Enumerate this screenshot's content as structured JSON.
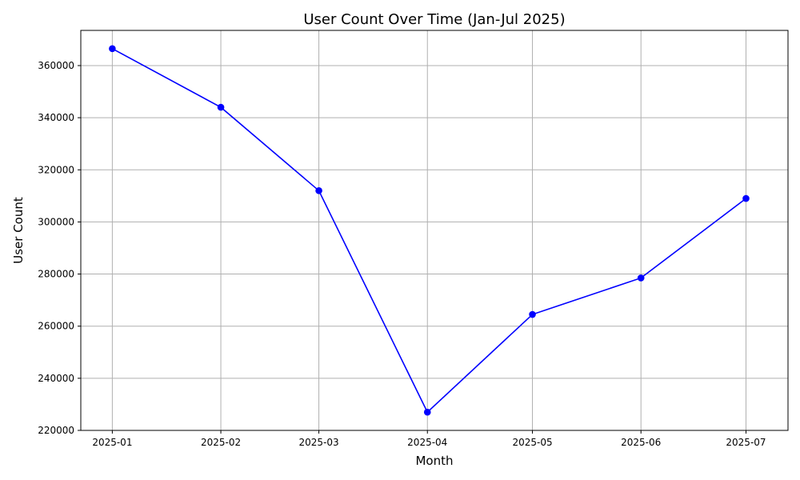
{
  "chart_data": {
    "type": "line",
    "title": "User Count Over Time (Jan-Jul 2025)",
    "xlabel": "Month",
    "ylabel": "User Count",
    "x": [
      "2025-01",
      "2025-02",
      "2025-03",
      "2025-04",
      "2025-05",
      "2025-06",
      "2025-07"
    ],
    "series": [
      {
        "values": [
          366500,
          344000,
          312000,
          227000,
          264500,
          278500,
          309000
        ],
        "color": "#0000ff",
        "marker": "circle"
      }
    ],
    "xlim": [
      "2024-12-23",
      "2025-07-13"
    ],
    "ylim": [
      220000,
      373500
    ],
    "yticks": [
      220000,
      240000,
      260000,
      280000,
      300000,
      320000,
      340000,
      360000
    ],
    "ytick_labels": [
      "220000",
      "240000",
      "260000",
      "280000",
      "300000",
      "320000",
      "340000",
      "360000"
    ],
    "grid": true,
    "legend": false
  }
}
